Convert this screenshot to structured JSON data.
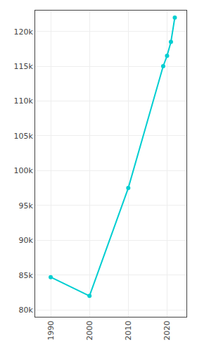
{
  "chart_data": {
    "type": "line",
    "x": [
      1990,
      2000,
      2010,
      2019,
      2020,
      2021,
      2022
    ],
    "values": [
      84700,
      82000,
      97500,
      115000,
      116500,
      118500,
      122000
    ],
    "color": "#00CED1",
    "marker": "circle",
    "line_style": "solid",
    "xlim": [
      1986,
      2025
    ],
    "xticks": [
      1990,
      2000,
      2010,
      2020
    ],
    "ylim": [
      79000,
      123000
    ],
    "yticks": [
      {
        "value": 80000,
        "label": "80k"
      },
      {
        "value": 85000,
        "label": "85k"
      },
      {
        "value": 90000,
        "label": "90k"
      },
      {
        "value": 95000,
        "label": "95k"
      },
      {
        "value": 100000,
        "label": "100k"
      },
      {
        "value": 105000,
        "label": "105k"
      },
      {
        "value": 110000,
        "label": "110k"
      },
      {
        "value": 115000,
        "label": "115k"
      },
      {
        "value": 120000,
        "label": "120k"
      }
    ],
    "grid": true
  }
}
